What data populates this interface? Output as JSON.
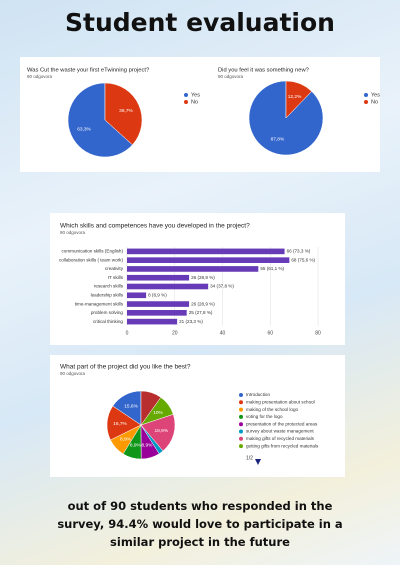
{
  "title": "Student evaluation",
  "note": "out of 90 students who responded in the survey, 94.4% would love to participate in a similar project in the future",
  "chart_data": [
    {
      "type": "pie",
      "title": "Was Cut the waste your first eTwinning project?",
      "subtitle": "90 odgovora",
      "categories": [
        "Yes",
        "No"
      ],
      "values": [
        63.3,
        36.7
      ],
      "value_labels": [
        "63,3%",
        "36,7%"
      ],
      "colors": [
        "#3366cc",
        "#dc3912"
      ]
    },
    {
      "type": "pie",
      "title": "Did you feel it was something new?",
      "subtitle": "90 odgovora",
      "categories": [
        "Yes",
        "No"
      ],
      "values": [
        87.8,
        12.2
      ],
      "value_labels": [
        "87,8%",
        "12,2%"
      ],
      "colors": [
        "#3366cc",
        "#dc3912"
      ]
    },
    {
      "type": "hbar",
      "title": "Which skills and competences have you developed in the project?",
      "subtitle": "90 odgovora",
      "categories": [
        "communication skills (English)",
        "collaboration skills ( team work)",
        "creativity",
        "IT skills",
        "research skills",
        "leadership skills",
        "time-management skills",
        "problem solving",
        "critical thinking"
      ],
      "values": [
        66,
        68,
        55,
        26,
        34,
        8,
        26,
        25,
        21
      ],
      "value_labels": [
        "66 (73,3 %)",
        "68 (75,6 %)",
        "55 (61,1 %)",
        "26 (28,9 %)",
        "34 (37,8 %)",
        "8 (8,9 %)",
        "26 (28,9 %)",
        "25 (27,8 %)",
        "21 (23,3 %)"
      ],
      "color": "#673ab7",
      "xlim": [
        0,
        80
      ],
      "xticks": [
        0,
        20,
        40,
        60,
        80
      ],
      "grid": true
    },
    {
      "type": "pie",
      "title": "What part of the project did you like the best?",
      "subtitle": "90 odgovora",
      "categories": [
        "Introduction",
        "making presentation about school",
        "making of the school logo",
        "voting for the logo",
        "presentation of the protected areas",
        "survey about waste management",
        "making gifts of recycled materials",
        "getting gifts from recycled materials",
        null
      ],
      "values": [
        15.6,
        16.7,
        8.9,
        8.9,
        8.9,
        2.2,
        18.9,
        10,
        9.9
      ],
      "value_labels": [
        "15,6%",
        "16,7%",
        "8,9%",
        "8,9%",
        "8,9%",
        null,
        "18,9%",
        "10%",
        null
      ],
      "colors": [
        "#3366cc",
        "#dc3912",
        "#ff9900",
        "#109618",
        "#990099",
        "#0099c6",
        "#dd4477",
        "#66aa00",
        "#b82e2e"
      ],
      "legend_page": "1/2"
    }
  ]
}
